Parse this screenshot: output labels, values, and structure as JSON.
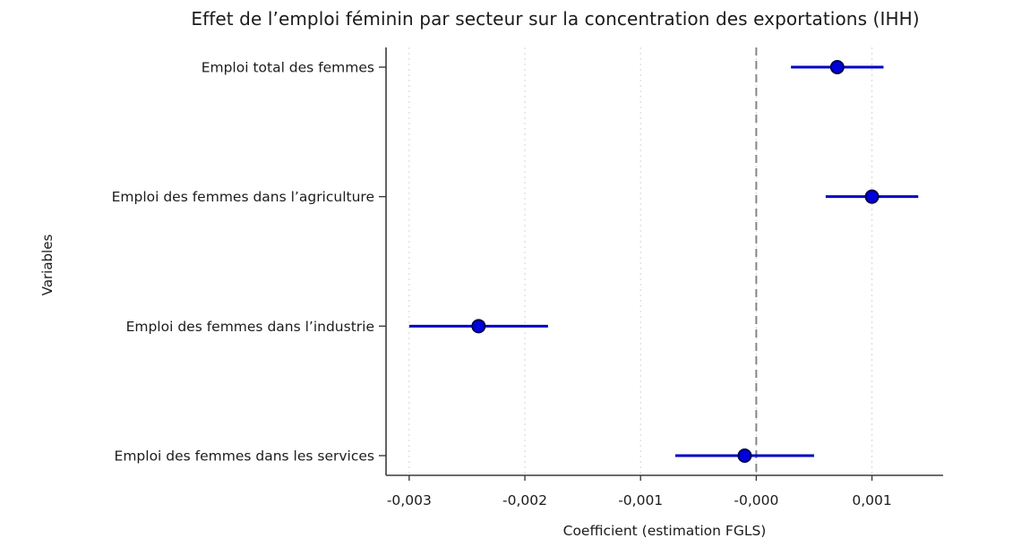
{
  "chart_data": {
    "type": "scatter",
    "subtype": "dot-and-whisker coefficient plot",
    "title": "Effet de l’emploi féminin par secteur sur la concentration des exportations (IHH)",
    "xlabel": "Coefficient (estimation FGLS)",
    "ylabel": "Variables",
    "categories": [
      "Emploi total des femmes",
      "Emploi des femmes dans l’agriculture",
      "Emploi des femmes dans l’industrie",
      "Emploi des femmes dans les services"
    ],
    "series": [
      {
        "name": "Coefficient FGLS",
        "estimates": [
          0.0007,
          0.001,
          -0.0024,
          -0.0001
        ],
        "ci_low": [
          0.0003,
          0.0006,
          -0.003,
          -0.0007
        ],
        "ci_high": [
          0.0011,
          0.0014,
          -0.0018,
          0.0005
        ]
      }
    ],
    "x_ticks": {
      "values": [
        -0.003,
        -0.002,
        -0.001,
        0.0,
        0.001
      ],
      "labels": [
        "-0,003",
        "-0,002",
        "-0,001",
        "-0,000",
        "0,001"
      ]
    },
    "xlim": [
      -0.0032,
      0.001615
    ],
    "zero_line_at": 0.0,
    "grid": "vertical dashed gridlines at x ticks",
    "legend": "none",
    "colors": {
      "point_fill": "#0000DC",
      "point_edge": "#000050",
      "errorbar": "#0000C4",
      "zero_line": "#868686",
      "gridline": "#d4d4d4",
      "axis": "#3c3c3c",
      "text": "#1c1c1c"
    }
  }
}
